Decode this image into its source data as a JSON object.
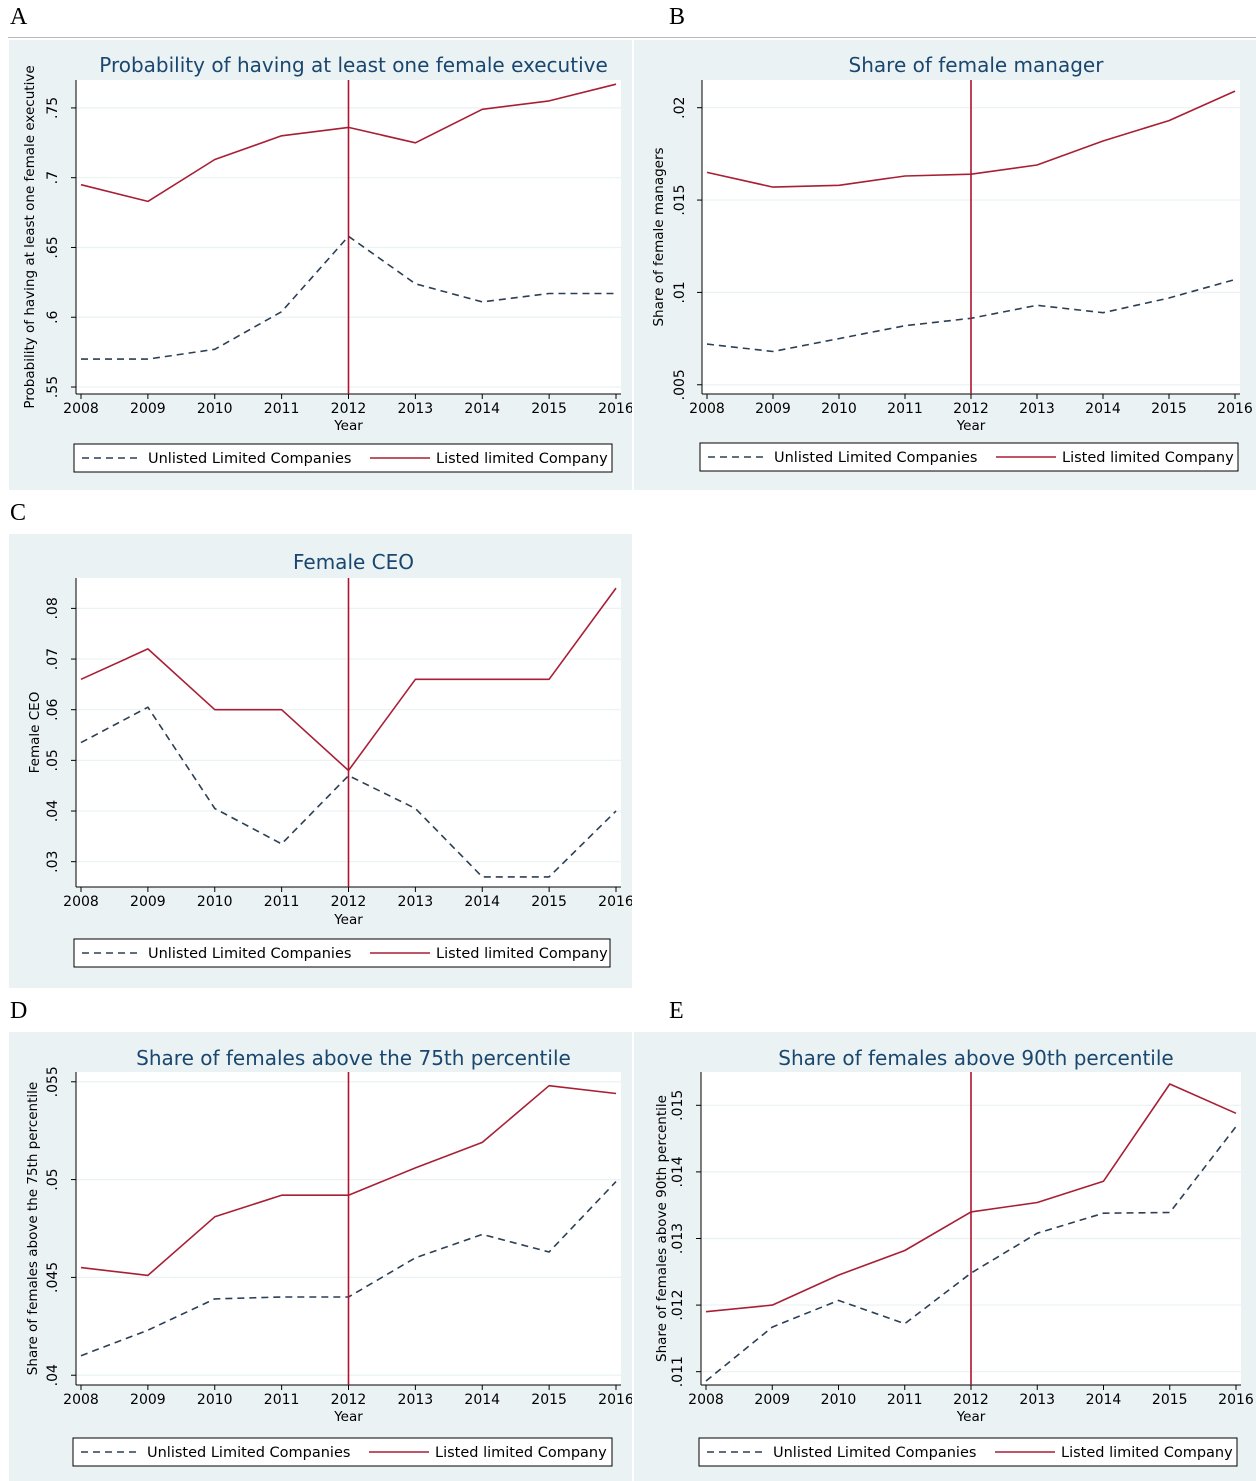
{
  "panels": [
    {
      "letter": "A",
      "chart_data": {
        "type": "line",
        "title": "Probability of having at least one female executive",
        "xlabel": "Year",
        "ylabel": "Probability of having at least one female executive",
        "categories": [
          "2008",
          "2009",
          "2010",
          "2011",
          "2012",
          "2013",
          "2014",
          "2015",
          "2016"
        ],
        "ylim": [
          0.545,
          0.77
        ],
        "yticks": [
          0.55,
          0.6,
          0.65,
          0.7,
          0.75
        ],
        "ytick_labels": [
          ".55",
          ".6",
          ".65",
          ".7",
          ".75"
        ],
        "vline": "2012",
        "grid": true,
        "legend_position": "bottom",
        "series": [
          {
            "name": "Unlisted Limited Companies",
            "style": "dashed",
            "color": "#2b3f55",
            "values": [
              0.57,
              0.57,
              0.577,
              0.604,
              0.658,
              0.624,
              0.611,
              0.617,
              0.617
            ]
          },
          {
            "name": "Listed limited Company",
            "style": "solid",
            "color": "#a81f35",
            "values": [
              0.695,
              0.683,
              0.713,
              0.73,
              0.736,
              0.725,
              0.749,
              0.755,
              0.767
            ]
          }
        ]
      }
    },
    {
      "letter": "B",
      "chart_data": {
        "type": "line",
        "title": "Share of female manager",
        "xlabel": "Year",
        "ylabel": "Share of female managers",
        "categories": [
          "2008",
          "2009",
          "2010",
          "2011",
          "2012",
          "2013",
          "2014",
          "2015",
          "2016"
        ],
        "ylim": [
          0.0045,
          0.0215
        ],
        "yticks": [
          0.005,
          0.01,
          0.015,
          0.02
        ],
        "ytick_labels": [
          ".005",
          ".01",
          ".015",
          ".02"
        ],
        "vline": "2012",
        "grid": true,
        "legend_position": "bottom",
        "series": [
          {
            "name": "Unlisted Limited Companies",
            "style": "dashed",
            "color": "#2b3f55",
            "values": [
              0.0072,
              0.0068,
              0.0075,
              0.0082,
              0.0086,
              0.0093,
              0.0089,
              0.0097,
              0.0107
            ]
          },
          {
            "name": "Listed limited Company",
            "style": "solid",
            "color": "#a81f35",
            "values": [
              0.0165,
              0.0157,
              0.0158,
              0.0163,
              0.0164,
              0.0169,
              0.0182,
              0.0193,
              0.0209
            ]
          }
        ]
      }
    },
    {
      "letter": "C",
      "chart_data": {
        "type": "line",
        "title": "Female CEO",
        "xlabel": "Year",
        "ylabel": "Female CEO",
        "categories": [
          "2008",
          "2009",
          "2010",
          "2011",
          "2012",
          "2013",
          "2014",
          "2015",
          "2016"
        ],
        "ylim": [
          0.025,
          0.086
        ],
        "yticks": [
          0.03,
          0.04,
          0.05,
          0.06,
          0.07,
          0.08
        ],
        "ytick_labels": [
          ".03",
          ".04",
          ".05",
          ".06",
          ".07",
          ".08"
        ],
        "vline": "2012",
        "grid": true,
        "legend_position": "bottom",
        "series": [
          {
            "name": "Unlisted Limited Companies",
            "style": "dashed",
            "color": "#2b3f55",
            "values": [
              0.0535,
              0.0605,
              0.0405,
              0.0335,
              0.047,
              0.0405,
              0.027,
              0.027,
              0.04
            ]
          },
          {
            "name": "Listed limited Company",
            "style": "solid",
            "color": "#a81f35",
            "values": [
              0.066,
              0.072,
              0.06,
              0.06,
              0.048,
              0.066,
              0.066,
              0.066,
              0.084
            ]
          }
        ]
      }
    },
    {
      "letter": "D",
      "chart_data": {
        "type": "line",
        "title": "Share of females above the 75th  percentile",
        "xlabel": "Year",
        "ylabel": "Share of females above the 75th  percentile",
        "categories": [
          "2008",
          "2009",
          "2010",
          "2011",
          "2012",
          "2013",
          "2014",
          "2015",
          "2016"
        ],
        "ylim": [
          0.0395,
          0.0555
        ],
        "yticks": [
          0.04,
          0.045,
          0.05,
          0.055
        ],
        "ytick_labels": [
          ".04",
          ".045",
          ".05",
          ".055"
        ],
        "vline": "2012",
        "grid": true,
        "legend_position": "bottom",
        "series": [
          {
            "name": "Unlisted Limited Companies",
            "style": "dashed",
            "color": "#2b3f55",
            "values": [
              0.041,
              0.0423,
              0.0439,
              0.044,
              0.044,
              0.046,
              0.0472,
              0.0463,
              0.0499
            ]
          },
          {
            "name": "Listed limited Company",
            "style": "solid",
            "color": "#a81f35",
            "values": [
              0.0455,
              0.0451,
              0.0481,
              0.0492,
              0.0492,
              0.0506,
              0.0519,
              0.0548,
              0.0544
            ]
          }
        ]
      }
    },
    {
      "letter": "E",
      "chart_data": {
        "type": "line",
        "title": "Share of females above 90th percentile",
        "xlabel": "Year",
        "ylabel": "Share of females above 90th percentile",
        "categories": [
          "2008",
          "2009",
          "2010",
          "2011",
          "2012",
          "2013",
          "2014",
          "2015",
          "2016"
        ],
        "ylim": [
          0.0108,
          0.0155
        ],
        "yticks": [
          0.011,
          0.012,
          0.013,
          0.014,
          0.015
        ],
        "ytick_labels": [
          ".011",
          ".012",
          ".013",
          ".014",
          ".015"
        ],
        "vline": "2012",
        "grid": true,
        "legend_position": "bottom",
        "series": [
          {
            "name": "Unlisted Limited Companies",
            "style": "dashed",
            "color": "#2b3f55",
            "values": [
              0.01086,
              0.01167,
              0.01207,
              0.01172,
              0.01248,
              0.01308,
              0.01338,
              0.01339,
              0.01468
            ]
          },
          {
            "name": "Listed limited Company",
            "style": "solid",
            "color": "#a81f35",
            "values": [
              0.0119,
              0.012,
              0.01245,
              0.01282,
              0.0134,
              0.01354,
              0.01386,
              0.01532,
              0.01488
            ]
          }
        ]
      }
    }
  ]
}
